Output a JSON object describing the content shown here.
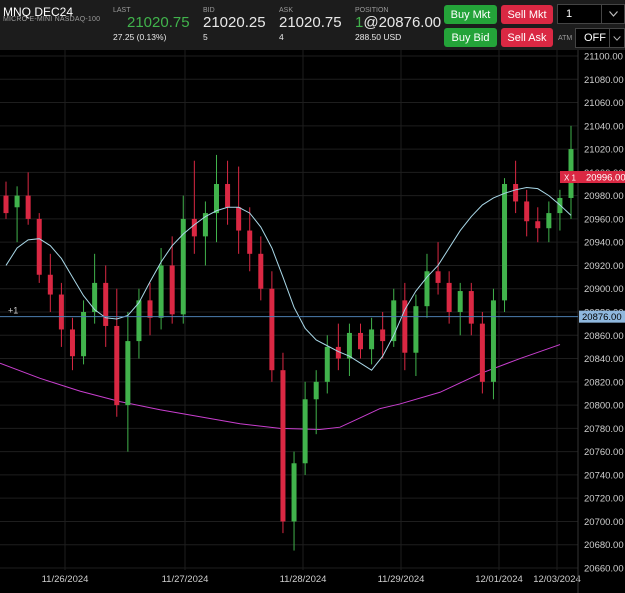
{
  "instrument": {
    "symbol": "MNQ DEC24",
    "description": "MICRO E-MINI NASDAQ-100"
  },
  "quote": {
    "last_label": "LAST",
    "last_value": "21020.75",
    "last_change": "27.25 (0.13%)",
    "bid_label": "BID",
    "bid_value": "21020.25",
    "bid_size": "5",
    "ask_label": "ASK",
    "ask_value": "21020.75",
    "ask_size": "4",
    "position_label": "POSITION",
    "position_qty": "1",
    "position_price": "@20876.00",
    "position_pnl": "288.50 USD"
  },
  "orders": {
    "buy_mkt": "Buy Mkt",
    "sell_mkt": "Sell Mkt",
    "buy_bid": "Buy Bid",
    "sell_ask": "Sell Ask",
    "quantity": "1",
    "atm_label": "ATM",
    "atm_value": "OFF"
  },
  "colors": {
    "up": "#41b34c",
    "down": "#da2843",
    "fast_ma": "#a9d8e8",
    "slow_ma": "#c93fcf",
    "position_line": "#4d7fb0",
    "current_price": "#da2843",
    "button_green": "#24a339",
    "button_red": "#da2843"
  },
  "icons": {
    "dropdown": "chevron-down-icon"
  },
  "chart_data": {
    "type": "candlestick",
    "y_ticks": [
      "21100.00",
      "21080.00",
      "21060.00",
      "21040.00",
      "21020.00",
      "21000.00",
      "20980.00",
      "20960.00",
      "20940.00",
      "20920.00",
      "20900.00",
      "20880.00",
      "20860.00",
      "20840.00",
      "20820.00",
      "20800.00",
      "20780.00",
      "20760.00",
      "20740.00",
      "20720.00",
      "20700.00",
      "20680.00",
      "20660.00"
    ],
    "ylim": [
      20655,
      21115
    ],
    "x_ticks": [
      "11/26/2024",
      "11/27/2024",
      "11/28/2024",
      "11/29/2024",
      "12/01/2024",
      "12/03/2024"
    ],
    "grid": true,
    "position_line": {
      "label": "+1",
      "price_tag": "20876.00",
      "value": 20876
    },
    "current_price_tag": {
      "marker": "X 1",
      "value_label": "20996.00",
      "value": 20996
    },
    "fast_ma": [
      20920,
      20935,
      20942,
      20943,
      20937,
      20926,
      20910,
      20894,
      20882,
      20875,
      20874,
      20877,
      20888,
      20906,
      20923,
      20937,
      20947,
      20955,
      20962,
      20967,
      20970,
      20970,
      20965,
      20953,
      20935,
      20910,
      20884,
      20866,
      20856,
      20851,
      20846,
      20842,
      20836,
      20830,
      20842,
      20860,
      20882,
      20898,
      20910,
      20920,
      20935,
      20950,
      20962,
      20972,
      20978,
      20982,
      20985,
      20987,
      20986,
      20980,
      20972,
      20963
    ],
    "slow_ma_points": [
      [
        0,
        20836
      ],
      [
        40,
        20823
      ],
      [
        80,
        20812
      ],
      [
        120,
        20803
      ],
      [
        160,
        20796
      ],
      [
        200,
        20790
      ],
      [
        240,
        20784
      ],
      [
        280,
        20780
      ],
      [
        320,
        20779
      ],
      [
        340,
        20781
      ],
      [
        360,
        20789
      ],
      [
        380,
        20797
      ],
      [
        400,
        20801
      ],
      [
        440,
        20811
      ],
      [
        480,
        20827
      ],
      [
        520,
        20840
      ],
      [
        560,
        20852
      ]
    ],
    "candles": [
      {
        "o": 20980,
        "h": 20992,
        "l": 20960,
        "c": 20965
      },
      {
        "o": 20970,
        "h": 20988,
        "l": 20940,
        "c": 20980
      },
      {
        "o": 20980,
        "h": 21000,
        "l": 20955,
        "c": 20960
      },
      {
        "o": 20960,
        "h": 20965,
        "l": 20905,
        "c": 20912
      },
      {
        "o": 20912,
        "h": 20930,
        "l": 20880,
        "c": 20895
      },
      {
        "o": 20895,
        "h": 20905,
        "l": 20850,
        "c": 20865
      },
      {
        "o": 20865,
        "h": 20875,
        "l": 20830,
        "c": 20842
      },
      {
        "o": 20842,
        "h": 20890,
        "l": 20835,
        "c": 20880
      },
      {
        "o": 20880,
        "h": 20930,
        "l": 20870,
        "c": 20905
      },
      {
        "o": 20905,
        "h": 20920,
        "l": 20850,
        "c": 20868
      },
      {
        "o": 20868,
        "h": 20900,
        "l": 20790,
        "c": 20800
      },
      {
        "o": 20800,
        "h": 20880,
        "l": 20760,
        "c": 20855
      },
      {
        "o": 20855,
        "h": 20900,
        "l": 20840,
        "c": 20890
      },
      {
        "o": 20890,
        "h": 20905,
        "l": 20860,
        "c": 20875
      },
      {
        "o": 20875,
        "h": 20935,
        "l": 20865,
        "c": 20920
      },
      {
        "o": 20920,
        "h": 20945,
        "l": 20870,
        "c": 20878
      },
      {
        "o": 20878,
        "h": 20980,
        "l": 20870,
        "c": 20960
      },
      {
        "o": 20960,
        "h": 21010,
        "l": 20930,
        "c": 20945
      },
      {
        "o": 20945,
        "h": 20975,
        "l": 20920,
        "c": 20965
      },
      {
        "o": 20965,
        "h": 21015,
        "l": 20940,
        "c": 20990
      },
      {
        "o": 20990,
        "h": 21010,
        "l": 20955,
        "c": 20970
      },
      {
        "o": 20970,
        "h": 21005,
        "l": 20930,
        "c": 20950
      },
      {
        "o": 20950,
        "h": 20970,
        "l": 20915,
        "c": 20930
      },
      {
        "o": 20930,
        "h": 20945,
        "l": 20890,
        "c": 20900
      },
      {
        "o": 20900,
        "h": 20915,
        "l": 20820,
        "c": 20830
      },
      {
        "o": 20830,
        "h": 20845,
        "l": 20690,
        "c": 20700
      },
      {
        "o": 20700,
        "h": 20760,
        "l": 20675,
        "c": 20750
      },
      {
        "o": 20750,
        "h": 20820,
        "l": 20740,
        "c": 20805
      },
      {
        "o": 20805,
        "h": 20830,
        "l": 20775,
        "c": 20820
      },
      {
        "o": 20820,
        "h": 20860,
        "l": 20810,
        "c": 20850
      },
      {
        "o": 20850,
        "h": 20870,
        "l": 20830,
        "c": 20840
      },
      {
        "o": 20840,
        "h": 20870,
        "l": 20825,
        "c": 20862
      },
      {
        "o": 20862,
        "h": 20870,
        "l": 20840,
        "c": 20848
      },
      {
        "o": 20848,
        "h": 20875,
        "l": 20835,
        "c": 20865
      },
      {
        "o": 20865,
        "h": 20880,
        "l": 20840,
        "c": 20855
      },
      {
        "o": 20855,
        "h": 20900,
        "l": 20850,
        "c": 20890
      },
      {
        "o": 20890,
        "h": 20905,
        "l": 20830,
        "c": 20845
      },
      {
        "o": 20845,
        "h": 20895,
        "l": 20825,
        "c": 20885
      },
      {
        "o": 20885,
        "h": 20930,
        "l": 20875,
        "c": 20915
      },
      {
        "o": 20915,
        "h": 20940,
        "l": 20895,
        "c": 20905
      },
      {
        "o": 20905,
        "h": 20915,
        "l": 20870,
        "c": 20880
      },
      {
        "o": 20880,
        "h": 20905,
        "l": 20860,
        "c": 20898
      },
      {
        "o": 20898,
        "h": 20905,
        "l": 20860,
        "c": 20870
      },
      {
        "o": 20870,
        "h": 20880,
        "l": 20810,
        "c": 20820
      },
      {
        "o": 20820,
        "h": 20900,
        "l": 20805,
        "c": 20890
      },
      {
        "o": 20890,
        "h": 20995,
        "l": 20880,
        "c": 20990
      },
      {
        "o": 20990,
        "h": 21010,
        "l": 20965,
        "c": 20975
      },
      {
        "o": 20975,
        "h": 20985,
        "l": 20945,
        "c": 20958
      },
      {
        "o": 20958,
        "h": 20970,
        "l": 20940,
        "c": 20952
      },
      {
        "o": 20952,
        "h": 20975,
        "l": 20940,
        "c": 20965
      },
      {
        "o": 20965,
        "h": 20985,
        "l": 20950,
        "c": 20978
      },
      {
        "o": 20978,
        "h": 21040,
        "l": 20960,
        "c": 21020
      }
    ]
  }
}
